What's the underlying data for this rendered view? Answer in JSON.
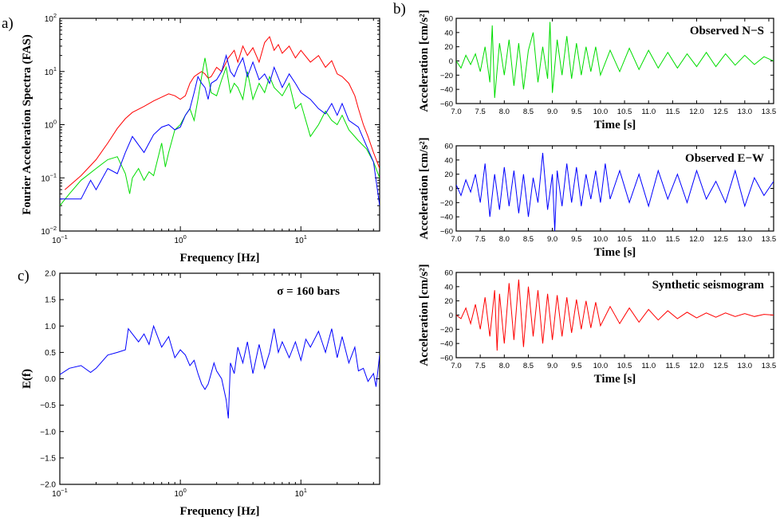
{
  "panels": {
    "a": "a)",
    "b": "b)",
    "c": "c)"
  },
  "colors": {
    "red": "#ff0000",
    "green": "#00dd00",
    "blue": "#0000ff"
  },
  "chart_data": [
    {
      "id": "a",
      "type": "line",
      "xlabel": "Frequency [Hz]",
      "ylabel": "Fourier Acceleration Spectra (FAS)",
      "x_scale": "log",
      "y_scale": "log",
      "xlim": [
        0.1,
        45
      ],
      "ylim": [
        0.01,
        100
      ],
      "x_ticks": [
        {
          "v": 0.1,
          "b": "10",
          "e": "−1"
        },
        {
          "v": 1,
          "b": "10",
          "e": "0"
        },
        {
          "v": 10,
          "b": "10",
          "e": "1"
        }
      ],
      "y_ticks": [
        {
          "v": 0.01,
          "b": "10",
          "e": "−2"
        },
        {
          "v": 0.1,
          "b": "10",
          "e": "−1"
        },
        {
          "v": 1,
          "b": "10",
          "e": "0"
        },
        {
          "v": 10,
          "b": "10",
          "e": "1"
        },
        {
          "v": 100,
          "b": "10",
          "e": "2"
        }
      ],
      "series": [
        {
          "color": "red",
          "x": [
            0.11,
            0.15,
            0.2,
            0.25,
            0.3,
            0.35,
            0.4,
            0.5,
            0.6,
            0.7,
            0.8,
            0.9,
            1.0,
            1.1,
            1.2,
            1.3,
            1.4,
            1.5,
            1.6,
            1.7,
            1.8,
            2.0,
            2.2,
            2.5,
            2.8,
            3.0,
            3.3,
            3.6,
            4.0,
            4.5,
            5.0,
            5.5,
            6.0,
            6.5,
            7.0,
            8.0,
            9.0,
            10,
            12,
            14,
            16,
            18,
            20,
            22,
            25,
            28,
            30,
            33,
            36,
            40,
            45
          ],
          "y": [
            0.06,
            0.11,
            0.22,
            0.45,
            0.85,
            1.3,
            1.7,
            2.2,
            2.8,
            3.3,
            3.8,
            3.5,
            3.0,
            3.5,
            6.0,
            8.0,
            9.0,
            10,
            9.0,
            7.5,
            8.0,
            12,
            10,
            18,
            25,
            15,
            30,
            20,
            28,
            15,
            35,
            45,
            25,
            32,
            22,
            30,
            18,
            25,
            15,
            20,
            12,
            16,
            9,
            8,
            6,
            3.5,
            2,
            1,
            0.6,
            0.3,
            0.15
          ]
        },
        {
          "color": "green",
          "x": [
            0.1,
            0.12,
            0.15,
            0.2,
            0.25,
            0.3,
            0.35,
            0.38,
            0.4,
            0.45,
            0.5,
            0.55,
            0.6,
            0.7,
            0.75,
            0.8,
            0.9,
            1.0,
            1.1,
            1.2,
            1.3,
            1.4,
            1.5,
            1.6,
            1.7,
            1.8,
            2.0,
            2.2,
            2.4,
            2.6,
            2.8,
            3.0,
            3.3,
            3.6,
            4.0,
            4.5,
            5.0,
            5.5,
            6.0,
            7.0,
            8.0,
            9.0,
            10,
            12,
            14,
            16,
            18,
            20,
            22,
            25,
            30,
            35,
            40,
            45
          ],
          "y": [
            0.03,
            0.05,
            0.09,
            0.15,
            0.22,
            0.25,
            0.12,
            0.05,
            0.1,
            0.15,
            0.09,
            0.13,
            0.11,
            0.45,
            0.16,
            0.3,
            0.8,
            1.0,
            1.5,
            2.0,
            1.2,
            3.0,
            8.0,
            18,
            8.0,
            4.0,
            3.5,
            7.0,
            12,
            4.0,
            6.0,
            5.0,
            3.0,
            10,
            3.0,
            6.0,
            4.0,
            8.0,
            5.0,
            3.5,
            6.0,
            2.0,
            2.5,
            0.6,
            1.0,
            1.8,
            1.2,
            1.0,
            1.5,
            0.8,
            0.5,
            0.35,
            0.2,
            0.1
          ]
        },
        {
          "color": "blue",
          "x": [
            0.1,
            0.15,
            0.18,
            0.2,
            0.25,
            0.3,
            0.35,
            0.4,
            0.5,
            0.6,
            0.7,
            0.8,
            0.9,
            1.0,
            1.1,
            1.2,
            1.3,
            1.4,
            1.5,
            1.6,
            1.7,
            1.8,
            2.0,
            2.2,
            2.4,
            2.6,
            2.8,
            3.0,
            3.3,
            3.6,
            4.0,
            4.5,
            5.0,
            5.5,
            6.0,
            7.0,
            8.0,
            9.0,
            10,
            12,
            14,
            16,
            18,
            20,
            22,
            25,
            30,
            35,
            40,
            45
          ],
          "y": [
            0.04,
            0.04,
            0.09,
            0.06,
            0.15,
            0.12,
            0.3,
            0.6,
            0.3,
            0.65,
            0.9,
            1.0,
            0.8,
            0.9,
            1.5,
            2.0,
            4.0,
            8.0,
            6.0,
            5.0,
            3.0,
            6.0,
            7.0,
            10,
            20,
            10,
            8.0,
            12,
            18,
            8.0,
            15,
            7.0,
            9.0,
            6.0,
            12,
            5.0,
            9.0,
            6.0,
            4.0,
            3.0,
            2.0,
            1.6,
            2.5,
            1.5,
            2.5,
            1.2,
            0.9,
            0.4,
            0.2,
            0.03
          ]
        }
      ]
    },
    {
      "id": "b1",
      "type": "line",
      "annotation": "Observed N−S",
      "xlabel": "Time [s]",
      "ylabel": "Acceleration [cm/s²]",
      "xlim": [
        7.0,
        13.6
      ],
      "ylim": [
        -60,
        60
      ],
      "x_ticks": [
        "7.0",
        "7.5",
        "8.0",
        "8.5",
        "9.0",
        "9.5",
        "10.0",
        "10.5",
        "11.0",
        "11.5",
        "12.0",
        "12.5",
        "13.0",
        "13.5"
      ],
      "y_ticks": [
        "60",
        "40",
        "20",
        "0",
        "−20",
        "−40",
        "−60"
      ],
      "series": [
        {
          "color": "green",
          "x": [
            7.0,
            7.1,
            7.2,
            7.3,
            7.4,
            7.5,
            7.6,
            7.7,
            7.75,
            7.8,
            7.9,
            8.0,
            8.1,
            8.2,
            8.3,
            8.4,
            8.5,
            8.6,
            8.7,
            8.8,
            8.9,
            8.95,
            9.0,
            9.1,
            9.2,
            9.3,
            9.4,
            9.5,
            9.6,
            9.7,
            9.8,
            9.9,
            10.0,
            10.2,
            10.4,
            10.6,
            10.8,
            11.0,
            11.2,
            11.4,
            11.6,
            11.8,
            12.0,
            12.2,
            12.4,
            12.6,
            12.8,
            13.0,
            13.2,
            13.4,
            13.6
          ],
          "y": [
            0,
            -10,
            8,
            -5,
            10,
            -15,
            20,
            -30,
            50,
            -52,
            25,
            -20,
            30,
            -35,
            25,
            -40,
            15,
            40,
            -30,
            20,
            -25,
            55,
            -45,
            30,
            -20,
            35,
            -25,
            25,
            -20,
            20,
            -15,
            20,
            -20,
            15,
            -15,
            18,
            -12,
            15,
            -10,
            12,
            -10,
            10,
            -8,
            12,
            -8,
            10,
            -6,
            8,
            -5,
            6,
            0
          ]
        }
      ]
    },
    {
      "id": "b2",
      "type": "line",
      "annotation": "Observed E−W",
      "xlabel": "Time [s]",
      "ylabel": "Acceleration [cm/s²]",
      "xlim": [
        7.0,
        13.6
      ],
      "ylim": [
        -60,
        60
      ],
      "x_ticks": [
        "7.0",
        "7.5",
        "8.0",
        "8.5",
        "9.0",
        "9.5",
        "10.0",
        "10.5",
        "11.0",
        "11.5",
        "12.0",
        "12.5",
        "13.0",
        "13.5"
      ],
      "y_ticks": [
        "60",
        "40",
        "20",
        "0",
        "−20",
        "−40",
        "−60"
      ],
      "series": [
        {
          "color": "blue",
          "x": [
            7.0,
            7.1,
            7.2,
            7.3,
            7.4,
            7.5,
            7.6,
            7.7,
            7.8,
            7.9,
            8.0,
            8.1,
            8.2,
            8.3,
            8.4,
            8.5,
            8.6,
            8.7,
            8.8,
            8.9,
            9.0,
            9.05,
            9.1,
            9.2,
            9.3,
            9.4,
            9.5,
            9.6,
            9.7,
            9.8,
            9.9,
            10.0,
            10.1,
            10.2,
            10.4,
            10.6,
            10.8,
            11.0,
            11.2,
            11.4,
            11.6,
            11.8,
            12.0,
            12.2,
            12.4,
            12.6,
            12.8,
            13.0,
            13.2,
            13.4,
            13.6
          ],
          "y": [
            5,
            -10,
            12,
            -5,
            20,
            -20,
            35,
            -40,
            20,
            -30,
            30,
            -25,
            25,
            -35,
            20,
            -40,
            15,
            -20,
            50,
            -30,
            20,
            -60,
            25,
            -25,
            35,
            -20,
            30,
            -25,
            20,
            -15,
            25,
            -20,
            35,
            -15,
            25,
            -20,
            20,
            -25,
            25,
            -15,
            20,
            -20,
            25,
            -15,
            10,
            -20,
            25,
            -25,
            15,
            -10,
            10
          ]
        }
      ]
    },
    {
      "id": "b3",
      "type": "line",
      "annotation": "Synthetic seismogram",
      "xlabel": "Time [s]",
      "ylabel": "Acceleration [cm/s²]",
      "xlim": [
        7.0,
        13.6
      ],
      "ylim": [
        -60,
        60
      ],
      "x_ticks": [
        "7.0",
        "7.5",
        "8.0",
        "8.5",
        "9.0",
        "9.5",
        "10.0",
        "10.5",
        "11.0",
        "11.5",
        "12.0",
        "12.5",
        "13.0",
        "13.5"
      ],
      "y_ticks": [
        "60",
        "40",
        "20",
        "0",
        "−20",
        "−40",
        "−60"
      ],
      "series": [
        {
          "color": "red",
          "x": [
            7.0,
            7.1,
            7.2,
            7.3,
            7.4,
            7.5,
            7.6,
            7.7,
            7.8,
            7.85,
            7.9,
            8.0,
            8.1,
            8.2,
            8.3,
            8.4,
            8.5,
            8.6,
            8.7,
            8.8,
            8.9,
            9.0,
            9.1,
            9.2,
            9.3,
            9.4,
            9.5,
            9.6,
            9.7,
            9.8,
            9.9,
            10.0,
            10.2,
            10.4,
            10.6,
            10.8,
            11.0,
            11.2,
            11.4,
            11.6,
            11.8,
            12.0,
            12.2,
            12.4,
            12.6,
            12.8,
            13.0,
            13.2,
            13.4,
            13.6
          ],
          "y": [
            0,
            -5,
            10,
            -12,
            15,
            -20,
            25,
            -30,
            35,
            -50,
            30,
            -40,
            45,
            -35,
            50,
            -45,
            40,
            -30,
            35,
            -40,
            30,
            -35,
            28,
            -30,
            25,
            -25,
            22,
            -20,
            20,
            -18,
            18,
            -15,
            12,
            -12,
            10,
            -10,
            8,
            -7,
            6,
            -5,
            4,
            -4,
            3,
            -3,
            3,
            -2,
            2,
            -2,
            1,
            0
          ]
        }
      ]
    },
    {
      "id": "c",
      "type": "line",
      "annotation": "σ = 160 bars",
      "xlabel": "Frequency [Hz]",
      "ylabel": "E(f)",
      "x_scale": "log",
      "xlim": [
        0.1,
        45
      ],
      "ylim": [
        -2.0,
        2.0
      ],
      "x_ticks": [
        {
          "v": 0.1,
          "b": "10",
          "e": "−1"
        },
        {
          "v": 1,
          "b": "10",
          "e": "0"
        },
        {
          "v": 10,
          "b": "10",
          "e": "1"
        }
      ],
      "y_ticks": [
        "2.0",
        "1.5",
        "1.0",
        "0.5",
        "0.0",
        "−0.5",
        "−1.0",
        "−1.5",
        "−2.0"
      ],
      "series": [
        {
          "color": "blue",
          "x": [
            0.1,
            0.12,
            0.15,
            0.18,
            0.2,
            0.25,
            0.3,
            0.35,
            0.37,
            0.4,
            0.45,
            0.5,
            0.55,
            0.6,
            0.7,
            0.8,
            0.9,
            1.0,
            1.1,
            1.2,
            1.3,
            1.4,
            1.5,
            1.6,
            1.7,
            1.8,
            1.9,
            2.0,
            2.2,
            2.4,
            2.5,
            2.6,
            2.8,
            3.0,
            3.3,
            3.6,
            4.0,
            4.5,
            5.0,
            5.5,
            6.0,
            6.5,
            7.0,
            8.0,
            9.0,
            10,
            11,
            12,
            14,
            16,
            18,
            20,
            22,
            25,
            28,
            30,
            33,
            36,
            40,
            42,
            45
          ],
          "y": [
            0.08,
            0.2,
            0.25,
            0.12,
            0.2,
            0.45,
            0.5,
            0.55,
            0.95,
            0.85,
            0.7,
            0.85,
            0.65,
            1.0,
            0.6,
            0.8,
            0.4,
            0.55,
            0.45,
            0.25,
            0.35,
            0.1,
            -0.1,
            -0.2,
            -0.1,
            0.1,
            0.3,
            0.15,
            0.0,
            -0.4,
            -0.75,
            0.3,
            0.1,
            0.6,
            0.3,
            0.7,
            0.1,
            0.65,
            0.2,
            0.5,
            0.95,
            0.5,
            0.7,
            0.4,
            0.7,
            0.35,
            0.75,
            0.6,
            0.9,
            0.5,
            0.95,
            0.4,
            0.8,
            0.3,
            0.6,
            0.15,
            0.2,
            -0.05,
            0.1,
            -0.15,
            0.45
          ]
        }
      ]
    }
  ]
}
